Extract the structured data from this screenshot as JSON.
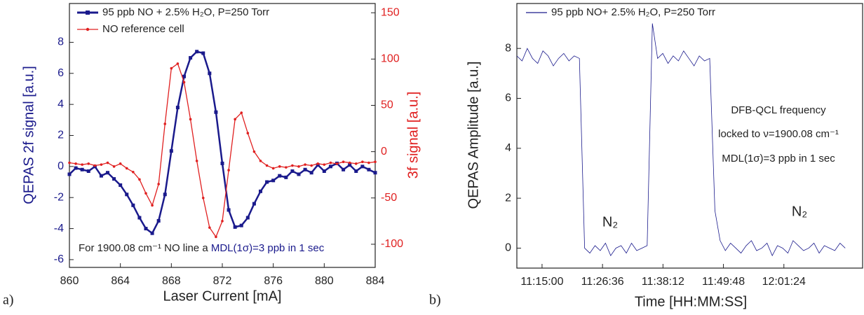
{
  "chart_data": [
    {
      "type": "line",
      "panel_label": "a)",
      "x_label": "Laser Current [mA]",
      "y_label": "QEPAS 2f signal [a.u.]",
      "y2_label": "3f signal [a.u.]",
      "ycolor": "#1a1a8c",
      "y2color": "#e02020",
      "xlim": [
        860,
        884
      ],
      "xticks": [
        860,
        864,
        868,
        872,
        876,
        880,
        884
      ],
      "ylim": [
        -6.5,
        10.5
      ],
      "yticks": [
        -6,
        -4,
        -2,
        0,
        2,
        4,
        6,
        8
      ],
      "y2lim": [
        -125,
        160
      ],
      "y2ticks": [
        -100,
        -50,
        0,
        50,
        100,
        150
      ],
      "x": [
        860,
        860.5,
        861,
        861.5,
        862,
        862.5,
        863,
        863.5,
        864,
        864.5,
        865,
        865.5,
        866,
        866.5,
        867,
        867.5,
        868,
        868.5,
        869,
        869.5,
        870,
        870.5,
        871,
        871.5,
        872,
        872.5,
        873,
        873.5,
        874,
        874.5,
        875,
        875.5,
        876,
        876.5,
        877,
        877.5,
        878,
        878.5,
        879,
        879.5,
        880,
        880.5,
        881,
        881.5,
        882,
        882.5,
        883,
        883.5,
        884
      ],
      "series": [
        {
          "name": "95 ppb NO + 2.5% H₂O, P=250 Torr",
          "color": "#1a1a8c",
          "marker": "square",
          "values": [
            -0.5,
            -0.1,
            -0.2,
            -0.3,
            0.0,
            -0.6,
            -0.4,
            -0.8,
            -1.2,
            -1.8,
            -2.5,
            -3.3,
            -4.0,
            -4.3,
            -3.5,
            -1.8,
            1.0,
            3.8,
            5.8,
            7.0,
            7.4,
            7.3,
            6.0,
            3.5,
            0.2,
            -2.8,
            -3.9,
            -3.8,
            -3.3,
            -2.4,
            -1.6,
            -1.0,
            -0.9,
            -0.6,
            -0.7,
            -0.3,
            -0.5,
            -0.2,
            -0.4,
            0.1,
            -0.3,
            0.0,
            0.2,
            -0.2,
            0.1,
            -0.3,
            0.0,
            -0.2,
            -0.4
          ]
        },
        {
          "name": "NO reference cell",
          "color": "#e02020",
          "marker": "circle",
          "axis": "y2",
          "values": [
            -12,
            -13,
            -14,
            -13,
            -15,
            -14,
            -12,
            -16,
            -13,
            -18,
            -22,
            -30,
            -45,
            -58,
            -35,
            30,
            90,
            95,
            75,
            35,
            -10,
            -50,
            -82,
            -92,
            -75,
            -20,
            35,
            42,
            20,
            0,
            -10,
            -15,
            -18,
            -16,
            -17,
            -15,
            -16,
            -14,
            -15,
            -13,
            -14,
            -12,
            -13,
            -11,
            -12,
            -13,
            -11,
            -12,
            -11
          ]
        }
      ],
      "annotations": [
        {
          "text": "For 1900.08 cm⁻¹ NO line a",
          "color": "#222222"
        },
        {
          "text": "MDL(1σ)=3 ppb in 1 sec",
          "color": "#1a1a8c"
        }
      ]
    },
    {
      "type": "line",
      "panel_label": "b)",
      "x_label": "Time [HH:MM:SS]",
      "y_label": "QEPAS Amplitude [a.u.]",
      "xlim": [
        "11:10:10",
        "12:16:30"
      ],
      "xticks": [
        "11:15:00",
        "11:26:36",
        "11:38:12",
        "11:49:48",
        "12:01:24"
      ],
      "ylim": [
        -0.8,
        9.8
      ],
      "yticks": [
        0,
        2,
        4,
        6,
        8
      ],
      "x": [
        "11:10:10",
        "11:11:10",
        "11:12:10",
        "11:13:10",
        "11:14:10",
        "11:15:10",
        "11:16:10",
        "11:17:10",
        "11:18:10",
        "11:19:10",
        "11:20:10",
        "11:21:10",
        "11:22:10",
        "11:23:10",
        "11:24:10",
        "11:25:10",
        "11:26:10",
        "11:27:10",
        "11:28:10",
        "11:29:10",
        "11:30:10",
        "11:31:10",
        "11:32:10",
        "11:33:10",
        "11:34:10",
        "11:35:10",
        "11:36:10",
        "11:37:10",
        "11:38:10",
        "11:39:10",
        "11:40:10",
        "11:41:10",
        "11:42:10",
        "11:43:10",
        "11:44:10",
        "11:45:10",
        "11:46:10",
        "11:47:10",
        "11:48:10",
        "11:49:10",
        "11:50:10",
        "11:51:10",
        "11:52:10",
        "11:53:10",
        "11:54:10",
        "11:55:10",
        "11:56:10",
        "11:57:10",
        "11:58:10",
        "11:59:10",
        "12:00:10",
        "12:01:10",
        "12:02:10",
        "12:03:10",
        "12:04:10",
        "12:05:10",
        "12:06:10",
        "12:07:10",
        "12:08:10",
        "12:09:10",
        "12:10:10",
        "12:11:10",
        "12:12:10",
        "12:13:10"
      ],
      "series": [
        {
          "name": "95 ppb NO+ 2.5% H₂O, P=250 Torr",
          "color": "#1a1a8c",
          "values": [
            7.7,
            7.5,
            8.0,
            7.6,
            7.4,
            7.9,
            7.7,
            7.3,
            7.6,
            7.8,
            7.5,
            7.7,
            7.6,
            0.0,
            -0.2,
            0.1,
            -0.1,
            0.2,
            -0.3,
            0.0,
            0.1,
            -0.2,
            0.2,
            -0.1,
            0.0,
            0.1,
            9.0,
            7.6,
            7.8,
            7.4,
            7.7,
            7.5,
            7.9,
            7.6,
            7.3,
            7.7,
            7.5,
            7.6,
            1.5,
            0.3,
            -0.1,
            0.2,
            0.0,
            -0.2,
            0.1,
            0.3,
            -0.1,
            0.0,
            0.2,
            -0.3,
            0.1,
            0.0,
            -0.2,
            0.3,
            0.1,
            -0.1,
            0.0,
            0.2,
            -0.2,
            0.1,
            0.0,
            -0.1,
            0.2,
            0.0
          ]
        }
      ],
      "annotations": [
        {
          "text": "N₂"
        },
        {
          "text": "N₂"
        },
        {
          "text": "DFB-QCL frequency"
        },
        {
          "text": "locked to ν=1900.08 cm⁻¹"
        },
        {
          "text": "MDL(1σ)=3 ppb in 1 sec"
        }
      ]
    }
  ]
}
